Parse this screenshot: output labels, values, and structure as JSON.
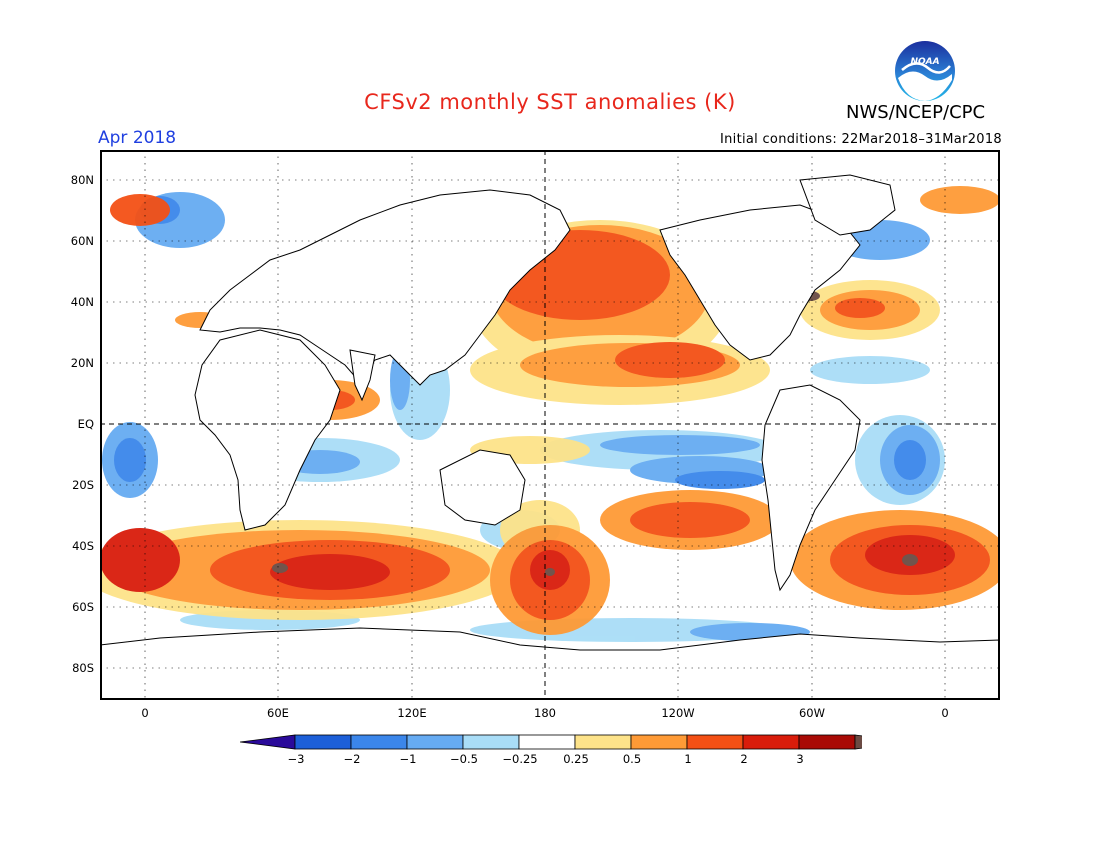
{
  "header": {
    "title": "CFSv2 monthly SST anomalies (K)",
    "agency": "NWS/NCEP/CPC",
    "logo_text": "NOAA",
    "month": "Apr 2018",
    "initial_conditions": "Initial conditions: 22Mar2018–31Mar2018"
  },
  "map": {
    "lat_labels": [
      "80N",
      "60N",
      "40N",
      "20N",
      "EQ",
      "20S",
      "40S",
      "60S",
      "80S"
    ],
    "lon_labels": [
      "0",
      "60E",
      "120E",
      "180",
      "120W",
      "60W",
      "0"
    ],
    "grid": "dashed",
    "land_color": "#ffffff",
    "outline_color": "#000000"
  },
  "colorbar": {
    "tick_labels": [
      "−3",
      "−2",
      "−1",
      "−0.5",
      "−0.25",
      "0.25",
      "0.5",
      "1",
      "2",
      "3"
    ],
    "colors": [
      "#2a0a9a",
      "#1c5fd8",
      "#3b86ea",
      "#66abf2",
      "#a9ddf7",
      "#ffffff",
      "#fde38a",
      "#fe9a36",
      "#f35015",
      "#d91c0b",
      "#a90a05",
      "#6b4b43"
    ]
  }
}
